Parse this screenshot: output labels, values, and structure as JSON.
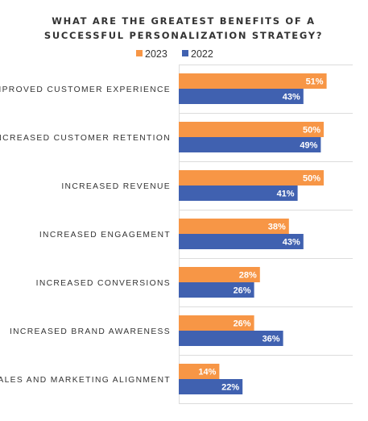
{
  "chart_data": {
    "type": "bar",
    "orientation": "horizontal",
    "title_lines": [
      "WHAT ARE THE GREATEST BENEFITS OF A",
      "SUCCESSFUL PERSONALIZATION STRATEGY?"
    ],
    "legend_position": "top",
    "grid": true,
    "xlim": [
      0,
      100
    ],
    "value_suffix": "%",
    "categories": [
      "IMPROVED CUSTOMER EXPERIENCE",
      "INCREASED CUSTOMER RETENTION",
      "INCREASED REVENUE",
      "INCREASED ENGAGEMENT",
      "INCREASED CONVERSIONS",
      "INCREASED BRAND AWARENESS",
      "SALES AND MARKETING ALIGNMENT"
    ],
    "series": [
      {
        "name": "2023",
        "color": "#f79646",
        "values": [
          51,
          50,
          50,
          38,
          28,
          26,
          14
        ]
      },
      {
        "name": "2022",
        "color": "#4061b0",
        "values": [
          43,
          49,
          41,
          43,
          26,
          36,
          22
        ]
      }
    ]
  }
}
